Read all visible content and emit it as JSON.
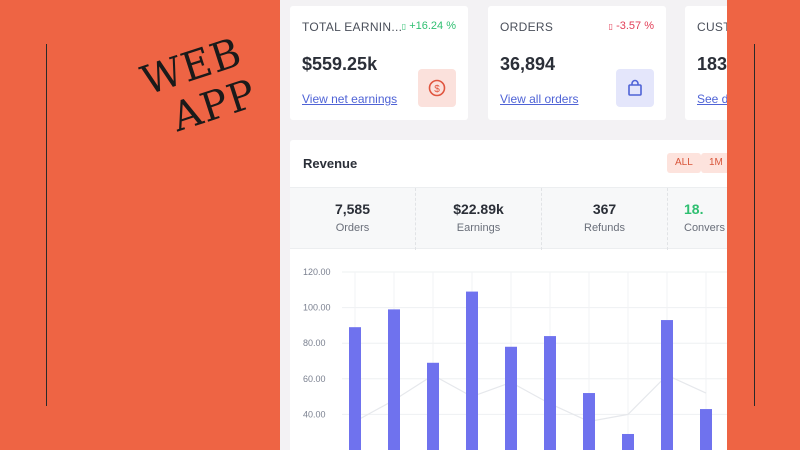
{
  "brand": {
    "line1": "WEB",
    "line2": "APP"
  },
  "kpis": [
    {
      "title": "TOTAL EARNIN...",
      "change": "+16.24 %",
      "direction": "up",
      "value": "$559.25k",
      "link": "View net earnings",
      "icon": "dollar-circle-icon"
    },
    {
      "title": "ORDERS",
      "change": "-3.57 %",
      "direction": "down",
      "value": "36,894",
      "link": "View all orders",
      "icon": "shopping-bag-icon"
    },
    {
      "title": "CUST",
      "value": "183.",
      "link": "See d"
    }
  ],
  "revenue": {
    "title": "Revenue",
    "filters": [
      "ALL",
      "1M"
    ],
    "stats": [
      {
        "value": "7,585",
        "label": "Orders"
      },
      {
        "value": "$22.89k",
        "label": "Earnings"
      },
      {
        "value": "367",
        "label": "Refunds"
      },
      {
        "value": "18.",
        "label": "Convers"
      }
    ]
  },
  "colors": {
    "background": "#ee6444",
    "bar": "#6f72ee",
    "up": "#2fbf71",
    "down": "#e23e57",
    "link": "#4f63d6"
  },
  "chart_data": {
    "type": "bar",
    "title": "",
    "yticks": [
      "120.00",
      "100.00",
      "80.00",
      "60.00",
      "40.00"
    ],
    "ylim": [
      20,
      120
    ],
    "values": [
      89,
      99,
      69,
      109,
      78,
      84,
      52,
      29,
      93,
      43
    ],
    "line_values": [
      36,
      48,
      62,
      50,
      58,
      46,
      36,
      40,
      62,
      52
    ]
  }
}
